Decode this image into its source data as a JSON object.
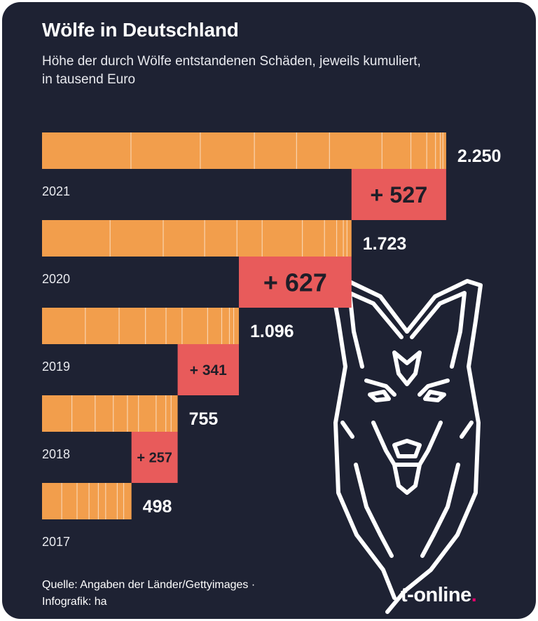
{
  "title": "Wölfe in Deutschland",
  "subtitle_line1": "Höhe der durch Wölfe entstandenen Schäden, jeweils kumuliert,",
  "subtitle_line2": "in tausend Euro",
  "footer_line1": "Quelle: Angaben der Länder/Gettyimages ·",
  "footer_line2": "Infografik: ha",
  "brand": "t-online",
  "brand_dot": ".",
  "colors": {
    "background": "#1e2233",
    "bar": "#f29e4c",
    "increase": "#e85b5b",
    "text": "#ffffff",
    "brand_dot": "#e2006b"
  },
  "decoration": "wolf-head-icon",
  "chart_data": {
    "type": "bar",
    "orientation": "horizontal",
    "categories": [
      "2021",
      "2020",
      "2019",
      "2018",
      "2017"
    ],
    "values": [
      2250,
      1723,
      1096,
      755,
      498
    ],
    "value_labels": [
      "2.250",
      "1.723",
      "1.096",
      "755",
      "498"
    ],
    "increase_labels": [
      "+ 527",
      "+ 627",
      "+ 341",
      "+ 257"
    ],
    "unit": "tausend Euro"
  }
}
